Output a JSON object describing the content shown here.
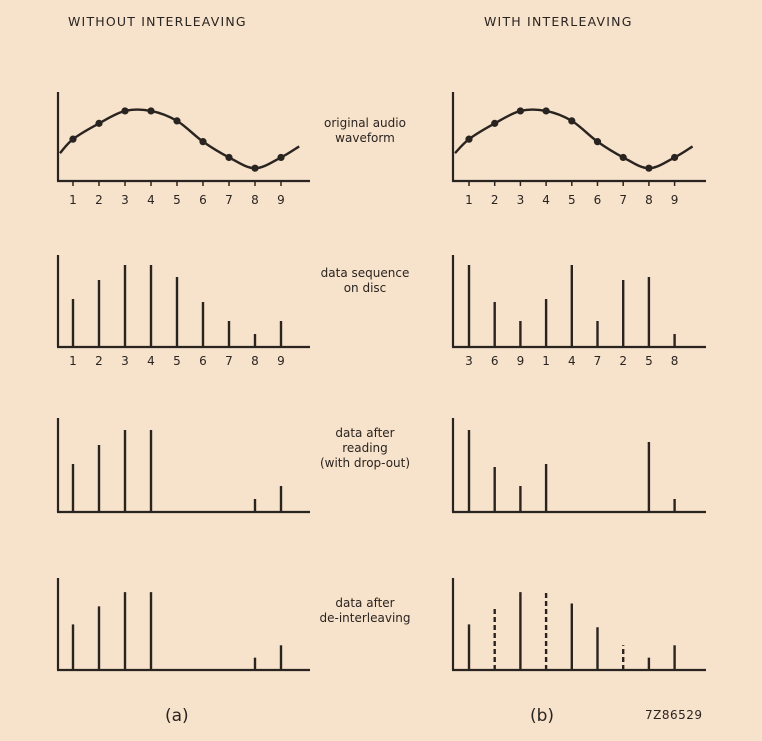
{
  "headers": {
    "left": "WITHOUT INTERLEAVING",
    "right": "WITH INTERLEAVING"
  },
  "row_labels": [
    [
      "original audio",
      "waveform"
    ],
    [
      "data sequence",
      "on disc"
    ],
    [
      "data after",
      "reading",
      "(with drop-out)"
    ],
    [
      "data after",
      "de-interleaving"
    ]
  ],
  "captions": {
    "left": "(a)",
    "right": "(b)",
    "figure_code": "7Z86529"
  },
  "chart_data": {
    "type": "bar",
    "units": "relative amplitude (arbitrary)",
    "samples": [
      1,
      2,
      3,
      4,
      5,
      6,
      7,
      8,
      9
    ],
    "amplitudes": [
      48,
      67,
      82,
      82,
      70,
      45,
      26,
      13,
      26
    ],
    "without_interleaving": {
      "disc_order": [
        1,
        2,
        3,
        4,
        5,
        6,
        7,
        8,
        9
      ],
      "lost_in_dropout": [
        5,
        6,
        7
      ],
      "after_deinterleaving_present": [
        1,
        2,
        3,
        4,
        8,
        9
      ],
      "interpolated": []
    },
    "with_interleaving": {
      "disc_order": [
        3,
        6,
        9,
        1,
        4,
        7,
        2,
        5,
        8
      ],
      "lost_in_dropout": [
        4,
        7,
        2
      ],
      "after_deinterleaving_present": [
        1,
        2,
        3,
        4,
        5,
        6,
        7,
        8,
        9
      ],
      "interpolated": [
        2,
        4,
        7
      ]
    },
    "line_color": "#2a2420"
  }
}
